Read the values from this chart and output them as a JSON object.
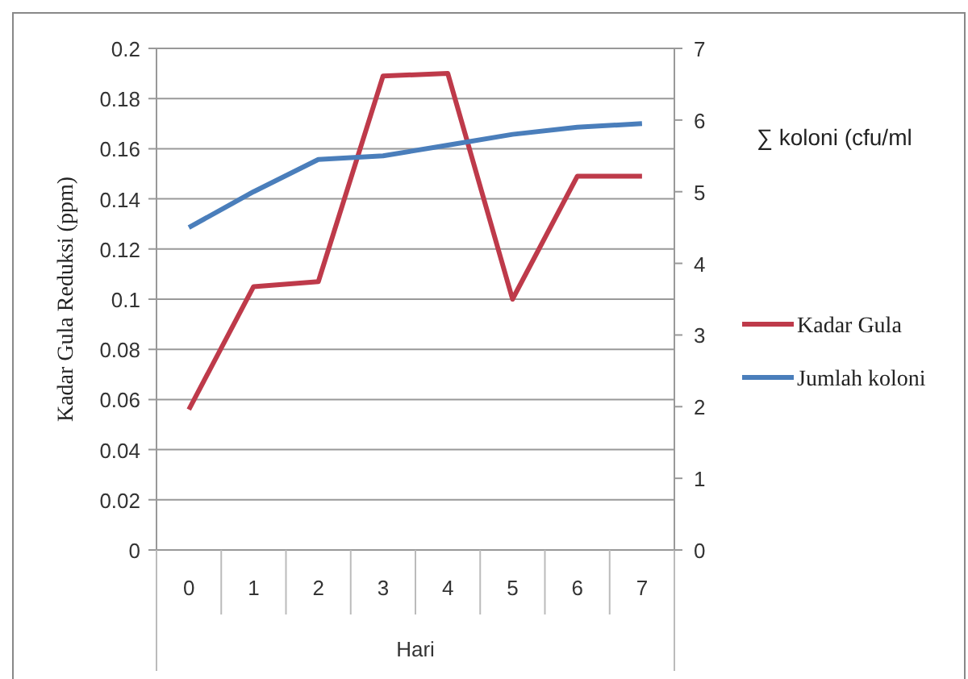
{
  "chart_data": {
    "type": "line",
    "xlabel": "Hari",
    "ylabel": "Kadar Gula Reduksi (ppm)",
    "y2label": "∑ koloni (cfu/ml",
    "categories": [
      "0",
      "1",
      "2",
      "3",
      "4",
      "5",
      "6",
      "7"
    ],
    "series": [
      {
        "name": "Kadar Gula",
        "color": "#be3a4a",
        "values": [
          0.056,
          0.105,
          0.107,
          0.189,
          0.19,
          0.1,
          0.149,
          0.149
        ]
      },
      {
        "name": "Jumlah koloni",
        "color": "#4a7ebb",
        "axis": "y2",
        "values": [
          4.5,
          5.0,
          5.45,
          5.5,
          5.65,
          5.8,
          5.9,
          5.95
        ]
      }
    ],
    "ylim": [
      0,
      0.2
    ],
    "yticks": [
      0,
      0.02,
      0.04,
      0.06,
      0.08,
      0.1,
      0.12,
      0.14,
      0.16,
      0.18,
      0.2
    ],
    "y2lim": [
      0,
      7
    ],
    "y2ticks": [
      0,
      1,
      2,
      3,
      4,
      5,
      6,
      7
    ],
    "grid": "y",
    "legend": "right",
    "marker": "none",
    "line_style": "solid"
  }
}
